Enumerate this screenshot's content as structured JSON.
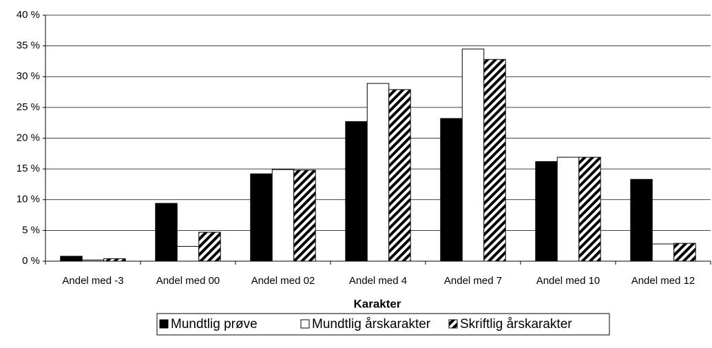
{
  "chart_data": {
    "type": "bar",
    "x_label": "Karakter",
    "categories": [
      "Andel med -3",
      "Andel med 00",
      "Andel med 02",
      "Andel med 4",
      "Andel med 7",
      "Andel med 10",
      "Andel med 12"
    ],
    "series": [
      {
        "name": "Mundtlig prøve",
        "color": "#000000",
        "values": [
          0.8,
          9.4,
          14.2,
          22.7,
          23.2,
          16.2,
          13.3
        ]
      },
      {
        "name": "Mundtlig årskarakter",
        "color": "#ffffff",
        "values": [
          0.2,
          2.4,
          14.9,
          28.9,
          34.5,
          16.9,
          2.8
        ]
      },
      {
        "name": "Skriftlig årskarakter",
        "color": "#000000",
        "pattern": "diagonal-hatch",
        "values": [
          0.4,
          4.7,
          14.8,
          27.9,
          32.8,
          16.9,
          2.9
        ]
      }
    ],
    "ylim": [
      0,
      40
    ],
    "yticks": [
      {
        "value": 0,
        "label": "0 %"
      },
      {
        "value": 5,
        "label": "5 %"
      },
      {
        "value": 10,
        "label": "10 %"
      },
      {
        "value": 15,
        "label": "15 %"
      },
      {
        "value": 20,
        "label": "20 %"
      },
      {
        "value": 25,
        "label": "25 %"
      },
      {
        "value": 30,
        "label": "30 %"
      },
      {
        "value": 35,
        "label": "35 %"
      },
      {
        "value": 40,
        "label": "40 %"
      }
    ],
    "grid": true,
    "legend": "bottom"
  }
}
